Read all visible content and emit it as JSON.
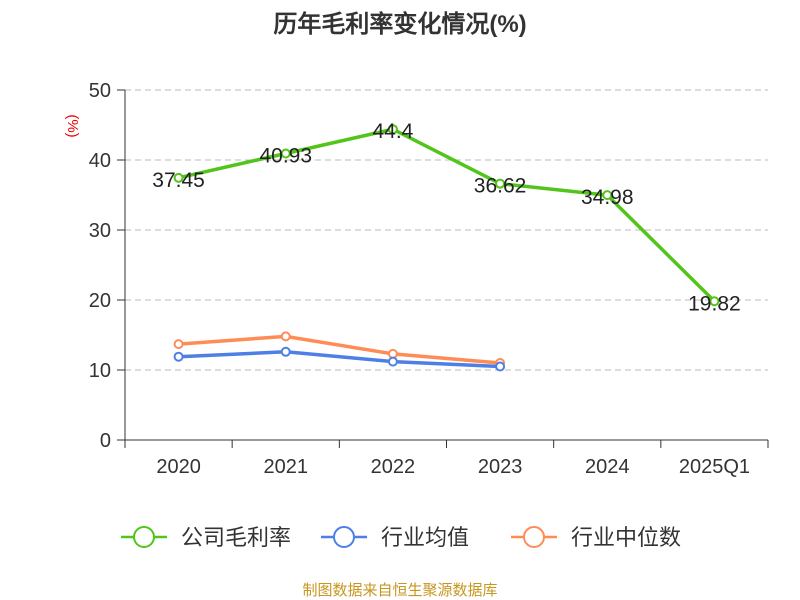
{
  "chart_data": {
    "type": "line",
    "title": "历年毛利率变化情况(%)",
    "ylabel": "(%)",
    "xlabel": "",
    "ylim": [
      0,
      50
    ],
    "yticks": [
      0,
      10,
      20,
      30,
      40,
      50
    ],
    "grid": true,
    "legend_position": "bottom",
    "categories": [
      "2020",
      "2021",
      "2022",
      "2023",
      "2024",
      "2025Q1"
    ],
    "series": [
      {
        "name": "公司毛利率",
        "color": "#52c41a",
        "values": [
          37.45,
          40.93,
          44.4,
          36.62,
          34.98,
          19.82
        ],
        "labels": [
          "37.45",
          "40.93",
          "44.4",
          "36.62",
          "34.98",
          "19.82"
        ]
      },
      {
        "name": "行业均值",
        "color": "#4e7fe6",
        "values": [
          11.9,
          12.6,
          11.2,
          10.5,
          null,
          null
        ]
      },
      {
        "name": "行业中位数",
        "color": "#ff8c55",
        "values": [
          13.7,
          14.8,
          12.3,
          11.0,
          null,
          null
        ]
      }
    ],
    "source": "制图数据来自恒生聚源数据库"
  }
}
